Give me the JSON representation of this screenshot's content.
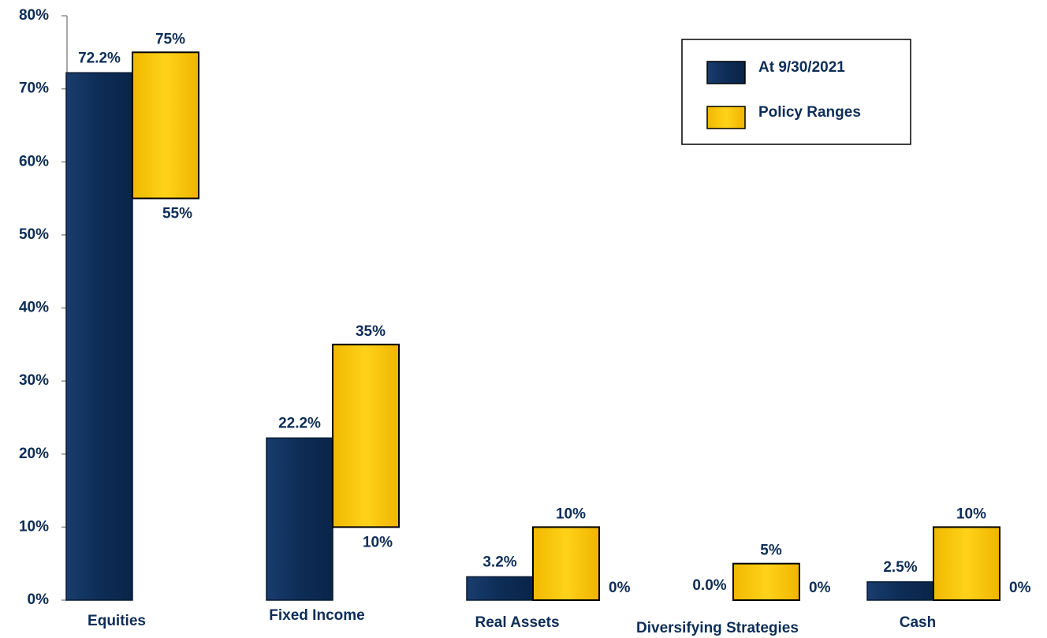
{
  "chart_data": {
    "type": "bar",
    "categories": [
      "Equities",
      "Fixed Income",
      "Real Assets",
      "Diversifying Strategies",
      "Cash"
    ],
    "series": [
      {
        "name": "At 9/30/2021",
        "color": "#0d2d57",
        "values": [
          72.2,
          22.2,
          3.2,
          0.0,
          2.5
        ],
        "value_labels": [
          "72.2%",
          "22.2%",
          "3.2%",
          "0.0%",
          "2.5%"
        ]
      },
      {
        "name": "Policy Ranges",
        "color": "#ffc800",
        "low": [
          55,
          10,
          0,
          0,
          0
        ],
        "high": [
          75,
          35,
          10,
          5,
          10
        ],
        "low_labels": [
          "55%",
          "10%",
          "0%",
          "0%",
          "0%"
        ],
        "high_labels": [
          "75%",
          "35%",
          "10%",
          "5%",
          "10%"
        ]
      }
    ],
    "ylim": [
      0,
      80
    ],
    "yticks": [
      {
        "value": 0,
        "label": "0%"
      },
      {
        "value": 10,
        "label": "10%"
      },
      {
        "value": 20,
        "label": "20%"
      },
      {
        "value": 30,
        "label": "30%"
      },
      {
        "value": 40,
        "label": "40%"
      },
      {
        "value": 50,
        "label": "50%"
      },
      {
        "value": 60,
        "label": "60%"
      },
      {
        "value": 70,
        "label": "70%"
      },
      {
        "value": 80,
        "label": "80%"
      }
    ],
    "legend": "top-right"
  }
}
